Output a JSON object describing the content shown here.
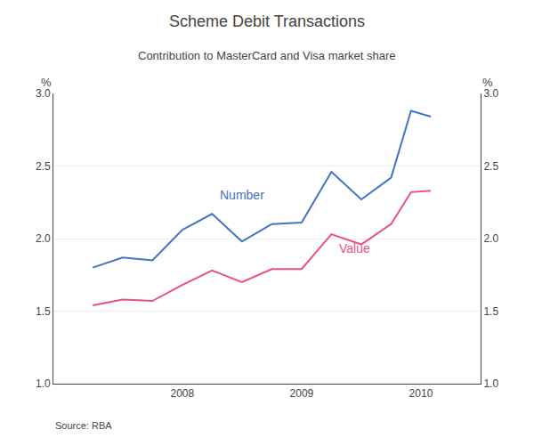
{
  "chart_data": {
    "type": "line",
    "title": "Scheme Debit Transactions",
    "subtitle": "Contribution to MasterCard and Visa market share",
    "source": "Source: RBA",
    "ylabel": "%",
    "y2label": "%",
    "x": [
      2007.25,
      2007.5,
      2007.75,
      2008.0,
      2008.25,
      2008.5,
      2008.75,
      2009.0,
      2009.25,
      2009.5,
      2009.75,
      2009.917,
      2010.083
    ],
    "series": [
      {
        "name": "Number",
        "color": "#4472C4",
        "values": [
          1.8,
          1.87,
          1.85,
          2.06,
          2.17,
          1.98,
          2.1,
          2.11,
          2.46,
          2.27,
          2.42,
          2.88,
          2.84
        ]
      },
      {
        "name": "Value",
        "color": "#E8527C",
        "values": [
          1.54,
          1.58,
          1.57,
          1.68,
          1.78,
          1.7,
          1.79,
          1.79,
          2.03,
          1.96,
          2.1,
          2.32,
          2.33
        ]
      }
    ],
    "annotations": [
      {
        "text": "Number",
        "x": 2008.3,
        "y": 2.24,
        "color": "#4472C4"
      },
      {
        "text": "Value",
        "x": 2009.3,
        "y": 1.87,
        "color": "#E8527C"
      }
    ],
    "xlim": [
      2006.92,
      2010.5
    ],
    "xticks": [
      2008,
      2009,
      2010
    ],
    "ylim": [
      1.0,
      3.0
    ],
    "yticks": [
      {
        "value": 1.0,
        "label": "1.0"
      },
      1.5,
      {
        "value": 2.0,
        "label": "2.0"
      },
      2.5,
      {
        "value": 3.0,
        "label": "3.0"
      }
    ],
    "y2lim": [
      1.0,
      3.0
    ],
    "y2ticks": [
      {
        "value": 1.0,
        "label": "1.0"
      },
      1.5,
      {
        "value": 2.0,
        "label": "2.0"
      },
      2.5,
      {
        "value": 3.0,
        "label": "3.0"
      }
    ],
    "grid": true
  }
}
